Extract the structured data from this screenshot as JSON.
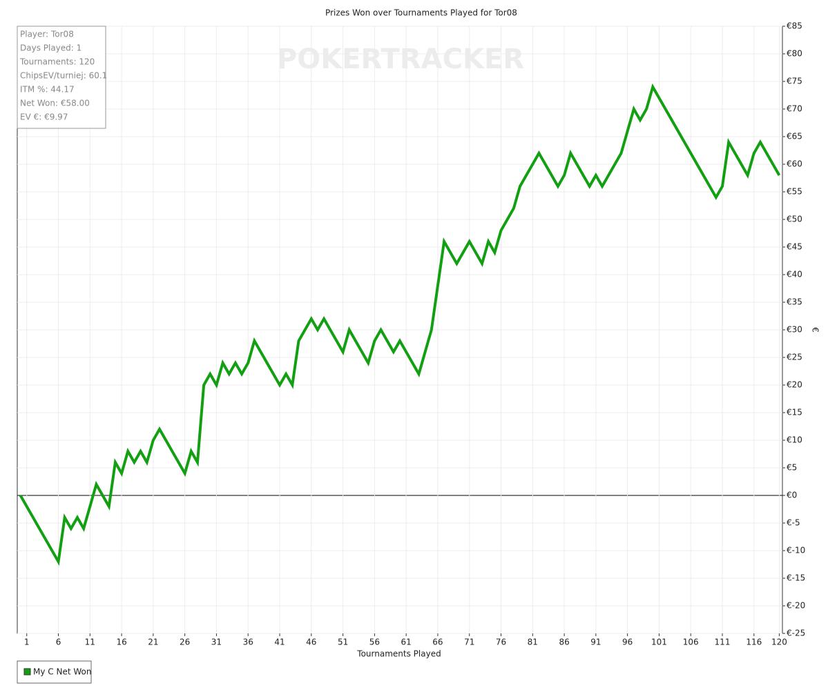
{
  "chart_data": {
    "type": "line",
    "title": "Prizes Won over Tournaments Played for Tor08",
    "watermark": "POKERTRACKER",
    "info": [
      "Player: Tor08",
      "Days Played: 1",
      "Tournaments: 120",
      "ChipsEV/turniej: 60.1",
      "ITM %: 44.17",
      "Net Won: €58.00",
      "EV €: €9.97"
    ],
    "x_label": "Tournaments Played",
    "y_label": "€",
    "x": [
      0,
      6,
      7,
      8,
      9,
      10,
      12,
      14,
      15,
      16,
      17,
      18,
      19,
      20,
      21,
      22,
      26,
      27,
      28,
      29,
      30,
      31,
      32,
      33,
      34,
      35,
      36,
      37,
      41,
      42,
      43,
      44,
      46,
      47,
      48,
      51,
      52,
      55,
      56,
      57,
      59,
      60,
      63,
      65,
      67,
      69,
      71,
      73,
      74,
      75,
      76,
      78,
      79,
      82,
      85,
      86,
      87,
      90,
      91,
      92,
      95,
      97,
      98,
      99,
      100,
      110,
      111,
      112,
      115,
      116,
      117,
      120
    ],
    "series": [
      {
        "name": "My C Net Won",
        "color": "#12a012",
        "values": [
          0,
          -12,
          -4,
          -6,
          -4,
          -6,
          2,
          -2,
          6,
          4,
          8,
          6,
          8,
          6,
          10,
          12,
          4,
          8,
          6,
          20,
          22,
          20,
          24,
          22,
          24,
          22,
          24,
          28,
          20,
          22,
          20,
          28,
          32,
          30,
          32,
          26,
          30,
          24,
          28,
          30,
          26,
          28,
          22,
          30,
          46,
          42,
          46,
          42,
          46,
          44,
          48,
          52,
          56,
          62,
          56,
          58,
          62,
          56,
          58,
          56,
          62,
          70,
          68,
          70,
          74,
          54,
          56,
          64,
          58,
          62,
          64,
          58
        ]
      }
    ],
    "xlim": [
      -0.5,
      120.5
    ],
    "xticks": [
      1,
      6,
      11,
      16,
      21,
      26,
      31,
      36,
      41,
      46,
      51,
      56,
      61,
      66,
      71,
      76,
      81,
      86,
      91,
      96,
      101,
      106,
      111,
      116,
      120
    ],
    "ylim": [
      -25,
      85
    ],
    "yticks": [
      {
        "value": -25,
        "label": "€-25"
      },
      {
        "value": -20,
        "label": "€-20"
      },
      {
        "value": -15,
        "label": "€-15"
      },
      {
        "value": -10,
        "label": "€-10"
      },
      {
        "value": -5,
        "label": "€-5"
      },
      {
        "value": 0,
        "label": "€0"
      },
      {
        "value": 5,
        "label": "€5"
      },
      {
        "value": 10,
        "label": "€10"
      },
      {
        "value": 15,
        "label": "€15"
      },
      {
        "value": 20,
        "label": "€20"
      },
      {
        "value": 25,
        "label": "€25"
      },
      {
        "value": 30,
        "label": "€30"
      },
      {
        "value": 35,
        "label": "€35"
      },
      {
        "value": 40,
        "label": "€40"
      },
      {
        "value": 45,
        "label": "€45"
      },
      {
        "value": 50,
        "label": "€50"
      },
      {
        "value": 55,
        "label": "€55"
      },
      {
        "value": 60,
        "label": "€60"
      },
      {
        "value": 65,
        "label": "€65"
      },
      {
        "value": 70,
        "label": "€70"
      },
      {
        "value": 75,
        "label": "€75"
      },
      {
        "value": 80,
        "label": "€80"
      },
      {
        "value": 85,
        "label": "€85"
      }
    ],
    "grid": true
  }
}
